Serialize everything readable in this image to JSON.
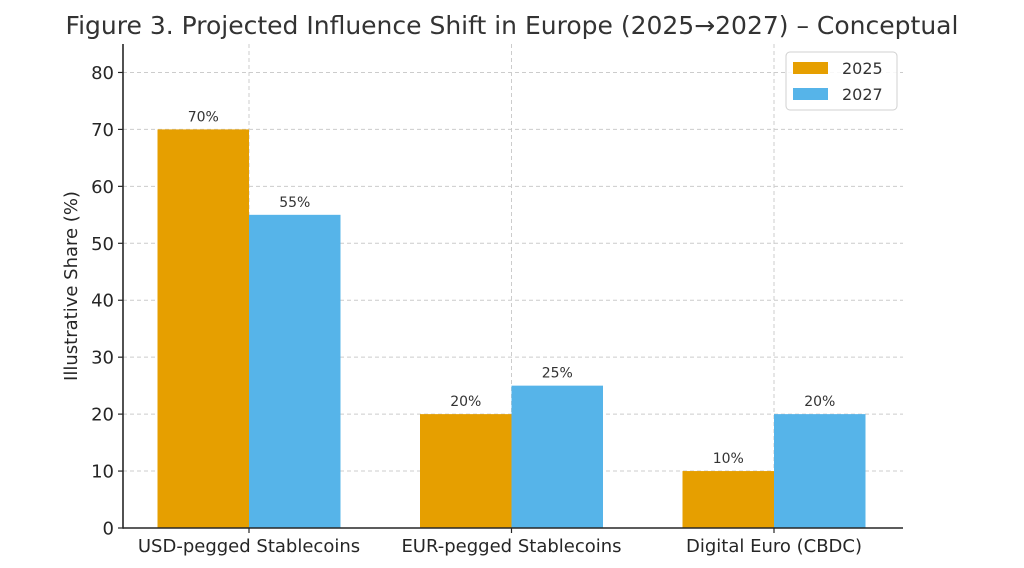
{
  "chart_data": {
    "type": "bar",
    "title": "Figure 3. Projected Influence Shift in Europe (2025→2027) – Conceptual",
    "xlabel": "",
    "ylabel": "Illustrative Share (%)",
    "categories": [
      "USD-pegged Stablecoins",
      "EUR-pegged Stablecoins",
      "Digital Euro (CBDC)"
    ],
    "series": [
      {
        "name": "2025",
        "color": "#E69F00",
        "values": [
          70,
          20,
          10
        ]
      },
      {
        "name": "2027",
        "color": "#56B4E9",
        "values": [
          55,
          25,
          20
        ]
      }
    ],
    "data_label_suffix": "%",
    "ylim": [
      0,
      85
    ],
    "yticks": [
      0,
      10,
      20,
      30,
      40,
      50,
      60,
      70,
      80
    ],
    "grid": true,
    "legend_position": "top-right"
  }
}
